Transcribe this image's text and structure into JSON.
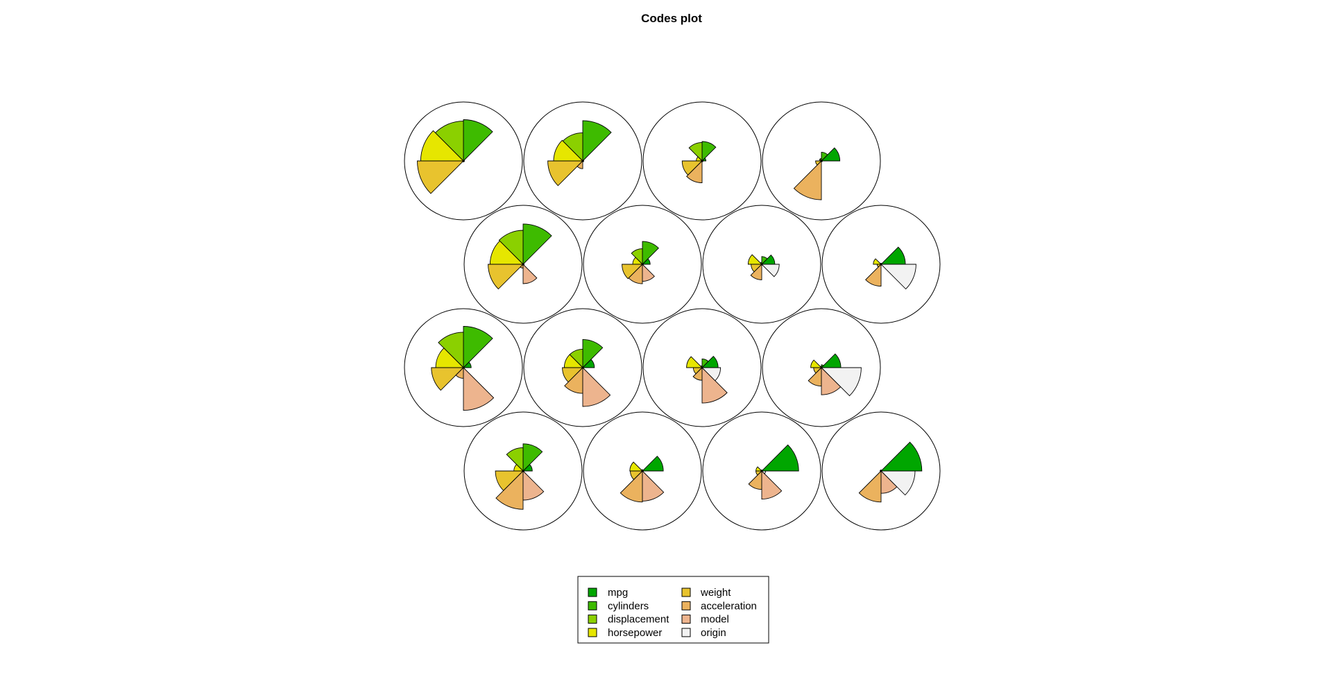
{
  "chart_data": {
    "type": "som-codes-segment",
    "title": "Codes plot",
    "variables": [
      "mpg",
      "cylinders",
      "displacement",
      "horsepower",
      "weight",
      "acceleration",
      "model",
      "origin"
    ],
    "colors": [
      "#00A600",
      "#3EBB00",
      "#8BD000",
      "#E6E600",
      "#E8C32E",
      "#EBB25E",
      "#EDB48E",
      "#F2F2F2"
    ],
    "grid": {
      "rows": 4,
      "cols": 4,
      "topology": "hexagonal"
    },
    "units": [
      {
        "row": 1,
        "col": 1,
        "values": [
          0.02,
          0.85,
          0.82,
          0.88,
          0.95,
          0.02,
          0.02,
          0.02
        ]
      },
      {
        "row": 1,
        "col": 2,
        "values": [
          0.02,
          0.83,
          0.58,
          0.6,
          0.72,
          0.16,
          0.02,
          0.02
        ]
      },
      {
        "row": 1,
        "col": 3,
        "values": [
          0.08,
          0.4,
          0.38,
          0.12,
          0.41,
          0.45,
          0.02,
          0.02
        ]
      },
      {
        "row": 1,
        "col": 4,
        "values": [
          0.38,
          0.18,
          0.05,
          0.04,
          0.12,
          0.8,
          0.02,
          0.02
        ]
      },
      {
        "row": 2,
        "col": 1,
        "values": [
          0.02,
          0.83,
          0.7,
          0.68,
          0.72,
          0.08,
          0.4,
          0.02
        ]
      },
      {
        "row": 2,
        "col": 2,
        "values": [
          0.16,
          0.47,
          0.32,
          0.2,
          0.42,
          0.4,
          0.35,
          0.02
        ]
      },
      {
        "row": 2,
        "col": 3,
        "values": [
          0.27,
          0.16,
          0.04,
          0.28,
          0.22,
          0.32,
          0.02,
          0.36
        ]
      },
      {
        "row": 2,
        "col": 4,
        "values": [
          0.5,
          0.02,
          0.02,
          0.16,
          0.08,
          0.45,
          0.02,
          0.72
        ]
      },
      {
        "row": 3,
        "col": 1,
        "values": [
          0.16,
          0.85,
          0.73,
          0.57,
          0.66,
          0.22,
          0.88,
          0.02
        ]
      },
      {
        "row": 3,
        "col": 2,
        "values": [
          0.24,
          0.58,
          0.38,
          0.38,
          0.42,
          0.53,
          0.8,
          0.02
        ]
      },
      {
        "row": 3,
        "col": 3,
        "values": [
          0.33,
          0.18,
          0.04,
          0.32,
          0.18,
          0.26,
          0.73,
          0.38
        ]
      },
      {
        "row": 3,
        "col": 4,
        "values": [
          0.4,
          0.06,
          0.03,
          0.22,
          0.16,
          0.38,
          0.56,
          0.82
        ]
      },
      {
        "row": 4,
        "col": 1,
        "values": [
          0.19,
          0.56,
          0.48,
          0.19,
          0.57,
          0.79,
          0.6,
          0.02
        ]
      },
      {
        "row": 4,
        "col": 2,
        "values": [
          0.43,
          0.02,
          0.03,
          0.26,
          0.25,
          0.64,
          0.62,
          0.02
        ]
      },
      {
        "row": 4,
        "col": 3,
        "values": [
          0.76,
          0.02,
          0.02,
          0.12,
          0.12,
          0.38,
          0.58,
          0.08
        ]
      },
      {
        "row": 4,
        "col": 4,
        "values": [
          0.84,
          0.02,
          0.02,
          0.02,
          0.02,
          0.64,
          0.46,
          0.7
        ]
      }
    ],
    "legend": {
      "position": "bottom-center",
      "columns": [
        [
          "mpg",
          "cylinders",
          "displacement",
          "horsepower"
        ],
        [
          "weight",
          "acceleration",
          "model",
          "origin"
        ]
      ]
    }
  }
}
